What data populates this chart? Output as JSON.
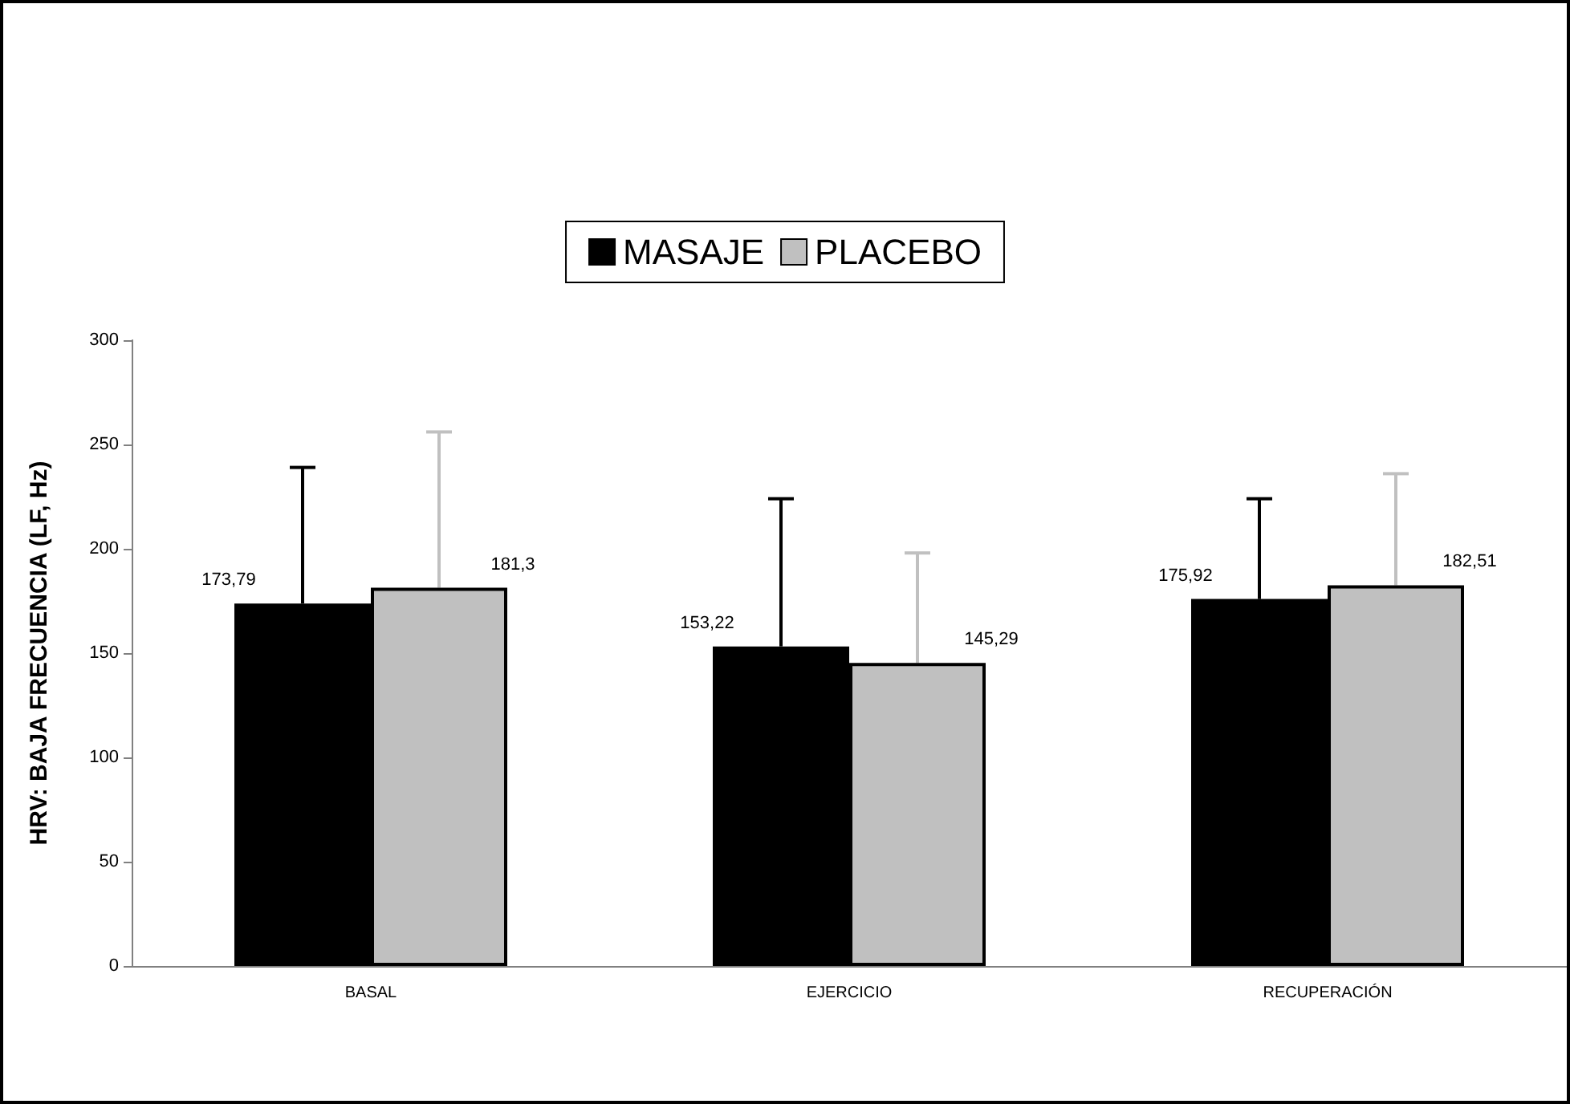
{
  "chart_data": {
    "type": "bar",
    "ylabel": "HRV: BAJA FRECUENCIA (LF, Hz)",
    "categories": [
      "BASAL",
      "EJERCICIO",
      "RECUPERACIÓN"
    ],
    "series": [
      {
        "name": "MASAJE",
        "color": "#000000",
        "values": [
          173.79,
          153.22,
          175.92
        ],
        "value_labels": [
          "173,79",
          "153,22",
          "175,92"
        ],
        "errors": [
          [
            173.79,
            239
          ],
          [
            153.22,
            224
          ],
          [
            175.92,
            224
          ]
        ]
      },
      {
        "name": "PLACEBO",
        "color": "#c0c0c0",
        "values": [
          181.3,
          145.29,
          182.51
        ],
        "value_labels": [
          "181,3",
          "145,29",
          "182,51"
        ],
        "errors": [
          [
            181.3,
            256
          ],
          [
            145.29,
            198
          ],
          [
            182.51,
            236
          ]
        ]
      }
    ],
    "ylim": [
      0,
      300
    ],
    "yticks": [
      0,
      50,
      100,
      150,
      200,
      250,
      300
    ],
    "grid": false,
    "legend": "top"
  }
}
